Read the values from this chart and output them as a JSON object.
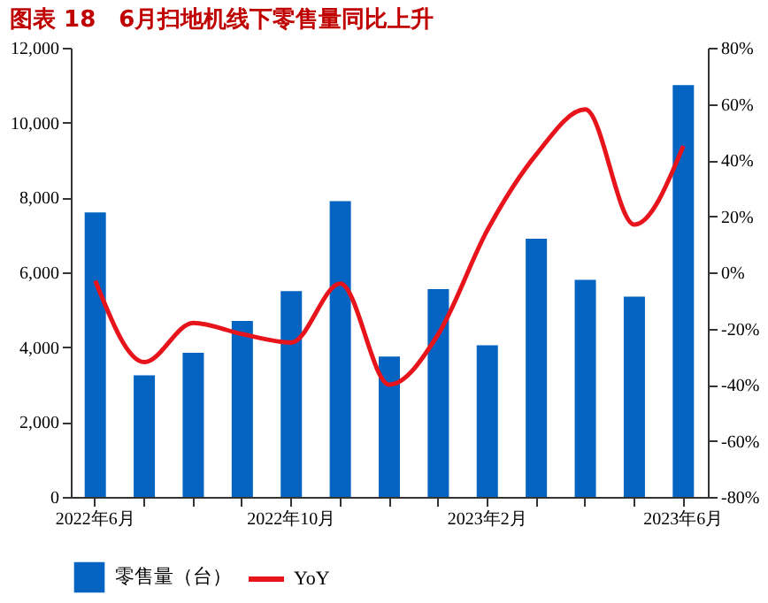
{
  "chart_data": {
    "type": "bar",
    "title": "图表 18　6月扫地机线下零售量同比上升",
    "categories": [
      "2022年6月",
      null,
      null,
      null,
      "2022年10月",
      null,
      null,
      null,
      "2023年2月",
      null,
      null,
      null,
      "2023年6月"
    ],
    "series": [
      {
        "name": "零售量（台）",
        "color": "#0563c1",
        "values": [
          7600,
          3250,
          3850,
          4700,
          5500,
          7900,
          3750,
          5550,
          4050,
          6900,
          5800,
          5350,
          11000
        ]
      },
      {
        "name": "YoY",
        "color": "#e8141c",
        "type": "line",
        "axis": "y2",
        "values": [
          -3,
          -32,
          -18,
          -22,
          -25,
          -4,
          -40,
          -22,
          15,
          42,
          58,
          17,
          45
        ]
      }
    ],
    "ylim": [
      0,
      12000
    ],
    "yticks": [
      0,
      {
        "value": 2000,
        "label": "2,000"
      },
      {
        "value": 4000,
        "label": "4,000"
      },
      {
        "value": 6000,
        "label": "6,000"
      },
      {
        "value": 8000,
        "label": "8,000"
      },
      {
        "value": 10000,
        "label": "10,000"
      },
      {
        "value": 12000,
        "label": "12,000"
      }
    ],
    "y2lim": [
      -80,
      80
    ],
    "y2ticks": [
      {
        "value": -80,
        "label": "-80%"
      },
      {
        "value": -60,
        "label": "-60%"
      },
      {
        "value": -40,
        "label": "-40%"
      },
      {
        "value": -20,
        "label": "-20%"
      },
      {
        "value": 0,
        "label": "0%"
      },
      {
        "value": 20,
        "label": "20%"
      },
      {
        "value": 40,
        "label": "40%"
      },
      {
        "value": 60,
        "label": "60%"
      },
      {
        "value": 80,
        "label": "80%"
      }
    ],
    "grid": false,
    "legend": "bottom"
  }
}
